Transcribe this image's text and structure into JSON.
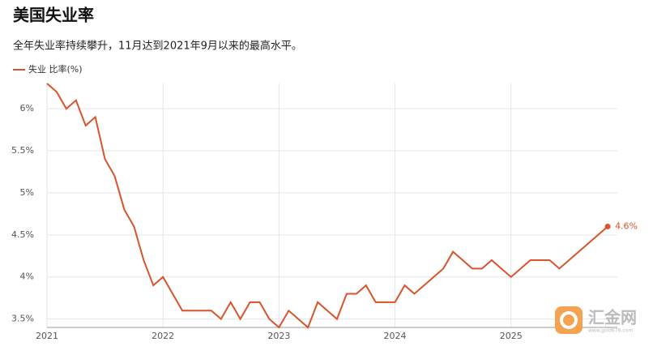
{
  "chart_data": {
    "type": "line",
    "title": "美国失业率",
    "subtitle": "全年失业率持续攀升，11月达到2021年9月以来的最高水平。",
    "x": [
      "2021-01",
      "2021-02",
      "2021-03",
      "2021-04",
      "2021-05",
      "2021-06",
      "2021-07",
      "2021-08",
      "2021-09",
      "2021-10",
      "2021-11",
      "2021-12",
      "2022-01",
      "2022-02",
      "2022-03",
      "2022-04",
      "2022-05",
      "2022-06",
      "2022-07",
      "2022-08",
      "2022-09",
      "2022-10",
      "2022-11",
      "2022-12",
      "2023-01",
      "2023-02",
      "2023-03",
      "2023-04",
      "2023-05",
      "2023-06",
      "2023-07",
      "2023-08",
      "2023-09",
      "2023-10",
      "2023-11",
      "2023-12",
      "2024-01",
      "2024-02",
      "2024-03",
      "2024-04",
      "2024-05",
      "2024-06",
      "2024-07",
      "2024-08",
      "2024-09",
      "2024-10",
      "2024-11",
      "2024-12",
      "2025-01",
      "2025-02",
      "2025-03",
      "2025-04",
      "2025-05",
      "2025-06",
      "2025-07",
      "2025-08",
      "2025-09",
      "2025-11"
    ],
    "series": [
      {
        "name": "失业 比率(%)",
        "color": "#d9532c",
        "values": [
          6.3,
          6.2,
          6.0,
          6.1,
          5.8,
          5.9,
          5.4,
          5.2,
          4.8,
          4.6,
          4.2,
          3.9,
          4.0,
          3.8,
          3.6,
          3.6,
          3.6,
          3.6,
          3.5,
          3.7,
          3.5,
          3.7,
          3.7,
          3.5,
          3.4,
          3.6,
          3.5,
          3.4,
          3.7,
          3.6,
          3.5,
          3.8,
          3.8,
          3.9,
          3.7,
          3.7,
          3.7,
          3.9,
          3.8,
          3.9,
          4.0,
          4.1,
          4.3,
          4.2,
          4.1,
          4.1,
          4.2,
          4.1,
          4.0,
          4.1,
          4.2,
          4.2,
          4.2,
          4.1,
          4.2,
          4.3,
          4.4,
          4.6
        ],
        "value_labels": [
          null,
          null,
          null,
          null,
          null,
          null,
          null,
          null,
          null,
          null,
          null,
          null,
          null,
          null,
          null,
          null,
          null,
          null,
          null,
          null,
          null,
          null,
          null,
          null,
          null,
          null,
          null,
          null,
          null,
          null,
          null,
          null,
          null,
          null,
          null,
          null,
          null,
          null,
          null,
          null,
          null,
          null,
          null,
          null,
          null,
          null,
          null,
          null,
          null,
          null,
          null,
          null,
          null,
          null,
          null,
          null,
          null,
          "4.6%"
        ]
      }
    ],
    "xlim": [
      "2021-01",
      "2025-12"
    ],
    "xticks": [
      {
        "value": "2021-01",
        "label": "2021"
      },
      {
        "value": "2022-01",
        "label": "2022"
      },
      {
        "value": "2023-01",
        "label": "2023"
      },
      {
        "value": "2024-01",
        "label": "2024"
      },
      {
        "value": "2025-01",
        "label": "2025"
      }
    ],
    "ylim": [
      3.4,
      6.3
    ],
    "yticks": [
      {
        "value": 3.5,
        "label": "3.5%"
      },
      {
        "value": 4,
        "label": "4%"
      },
      {
        "value": 4.5,
        "label": "4.5%"
      },
      {
        "value": 5,
        "label": "5%"
      },
      {
        "value": 5.5,
        "label": "5.5%"
      },
      {
        "value": 6,
        "label": "6%"
      }
    ],
    "grid": true
  },
  "watermark": {
    "name": "汇金网",
    "url": "www.gold678.com"
  }
}
